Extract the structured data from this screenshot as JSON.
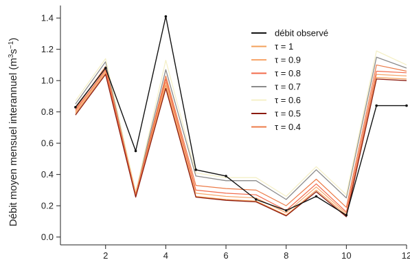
{
  "chart_data": {
    "type": "line",
    "ylabel": "Débit moyen mensuel interannuel (m³s⁻¹)",
    "ylabel_parts": {
      "prefix": "Débit moyen mensuel interannuel (m",
      "sup1": "3",
      "mid": "s",
      "sup2": "−1",
      "suffix": ")"
    },
    "xlabel": "",
    "x": [
      1,
      2,
      3,
      4,
      5,
      6,
      7,
      8,
      9,
      10,
      11,
      12
    ],
    "xlim": [
      0.5,
      12
    ],
    "ylim": [
      -0.05,
      1.48
    ],
    "xticks": [
      2,
      4,
      6,
      8,
      10,
      12
    ],
    "yticks": [
      0.0,
      0.2,
      0.4,
      0.6,
      0.8,
      1.0,
      1.2,
      1.4
    ],
    "ytick_labels": [
      "0.0",
      "0.2",
      "0.4",
      "0.6",
      "0.8",
      "1.0",
      "1.2",
      "1.4"
    ],
    "grid": false,
    "legend_position": "top-right",
    "series": [
      {
        "name": "débit observé",
        "color": "#111111",
        "width": 1.4,
        "points": true,
        "values": [
          0.83,
          1.08,
          0.55,
          1.41,
          0.43,
          0.39,
          0.24,
          0.17,
          0.26,
          0.14,
          0.84,
          0.84
        ]
      },
      {
        "name": "τ = 1",
        "color": "#f3a05a",
        "width": 1.2,
        "points": false,
        "values": [
          0.79,
          1.05,
          0.26,
          0.97,
          0.26,
          0.24,
          0.23,
          0.14,
          0.3,
          0.14,
          1.02,
          1.01
        ]
      },
      {
        "name": "τ = 0.9",
        "color": "#f7a66b",
        "width": 1.2,
        "points": false,
        "values": [
          0.8,
          1.06,
          0.265,
          0.99,
          0.28,
          0.26,
          0.25,
          0.155,
          0.32,
          0.15,
          1.04,
          1.03
        ]
      },
      {
        "name": "τ = 0.8",
        "color": "#f26a4a",
        "width": 1.2,
        "points": false,
        "values": [
          0.81,
          1.07,
          0.27,
          1.01,
          0.3,
          0.28,
          0.27,
          0.17,
          0.34,
          0.16,
          1.06,
          1.05
        ]
      },
      {
        "name": "τ = 0.7",
        "color": "#8a8a8a",
        "width": 1.3,
        "points": false,
        "values": [
          0.85,
          1.12,
          0.29,
          1.07,
          0.39,
          0.36,
          0.36,
          0.24,
          0.43,
          0.25,
          1.15,
          1.08
        ]
      },
      {
        "name": "τ = 0.6",
        "color": "#f5f0c8",
        "width": 1.3,
        "points": false,
        "values": [
          0.87,
          1.14,
          0.29,
          1.13,
          0.41,
          0.38,
          0.38,
          0.26,
          0.45,
          0.27,
          1.19,
          1.1
        ]
      },
      {
        "name": "τ = 0.5",
        "color": "#8b1a0e",
        "width": 1.3,
        "points": false,
        "values": [
          0.78,
          1.04,
          0.255,
          0.95,
          0.255,
          0.235,
          0.225,
          0.135,
          0.29,
          0.13,
          1.01,
          1.0
        ]
      },
      {
        "name": "τ = 0.4",
        "color": "#ec7b48",
        "width": 1.2,
        "points": false,
        "values": [
          0.82,
          1.09,
          0.275,
          1.03,
          0.33,
          0.31,
          0.3,
          0.2,
          0.37,
          0.19,
          1.1,
          1.06
        ]
      }
    ]
  }
}
